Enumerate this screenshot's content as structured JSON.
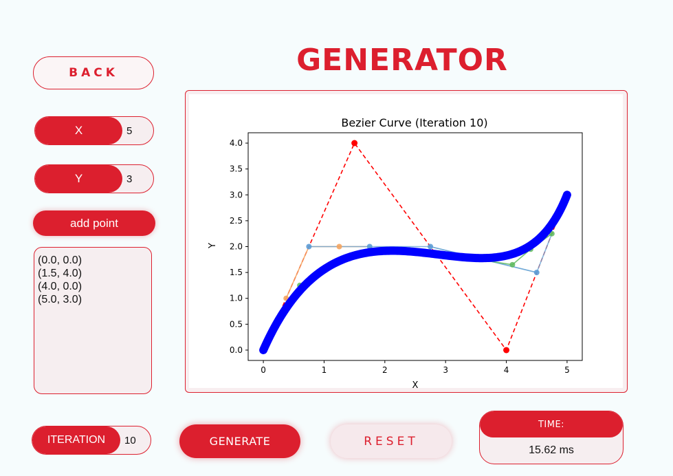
{
  "app": {
    "title": "GENERATOR"
  },
  "nav": {
    "back_label": "BACK"
  },
  "inputs": {
    "x_label": "X",
    "x_value": "5",
    "y_label": "Y",
    "y_value": "3",
    "add_point_label": "add point",
    "iteration_label": "ITERATION",
    "iteration_value": "10"
  },
  "points": [
    "(0.0, 0.0)",
    "(1.5, 4.0)",
    "(4.0, 0.0)",
    "(5.0, 3.0)"
  ],
  "actions": {
    "generate_label": "GENERATE",
    "reset_label": "RESET"
  },
  "time": {
    "label": "TIME:",
    "value": "15.62 ms"
  },
  "colors": {
    "accent": "#dc1f2e",
    "curve": "#0000ff",
    "control_line": "#ff0000"
  },
  "chart_data": {
    "type": "line",
    "title": "Bezier Curve (Iteration 10)",
    "xlabel": "X",
    "ylabel": "Y",
    "xlim": [
      -0.25,
      5.25
    ],
    "ylim": [
      -0.2,
      4.2
    ],
    "xticks": [
      0,
      1,
      2,
      3,
      4,
      5
    ],
    "yticks": [
      0.0,
      0.5,
      1.0,
      1.5,
      2.0,
      2.5,
      3.0,
      3.5,
      4.0
    ],
    "control_points": [
      [
        0,
        0
      ],
      [
        1.5,
        4
      ],
      [
        4,
        0
      ],
      [
        5,
        3
      ]
    ],
    "level1_points": [
      [
        0.375,
        1.0
      ],
      [
        0.75,
        2.0
      ],
      [
        1.25,
        2.0
      ],
      [
        1.75,
        2.0
      ],
      [
        2.75,
        2.0
      ],
      [
        3.625,
        1.75
      ],
      [
        4.5,
        1.5
      ],
      [
        4.75,
        2.25
      ]
    ],
    "level2_points": [
      [
        0.6,
        1.25
      ],
      [
        0.85,
        1.5
      ],
      [
        2.0,
        2.0
      ],
      [
        3.0,
        1.85
      ],
      [
        4.1,
        1.65
      ],
      [
        4.4,
        1.95
      ],
      [
        4.75,
        2.25
      ]
    ],
    "curve_color": "#0000ff",
    "grid": false
  }
}
